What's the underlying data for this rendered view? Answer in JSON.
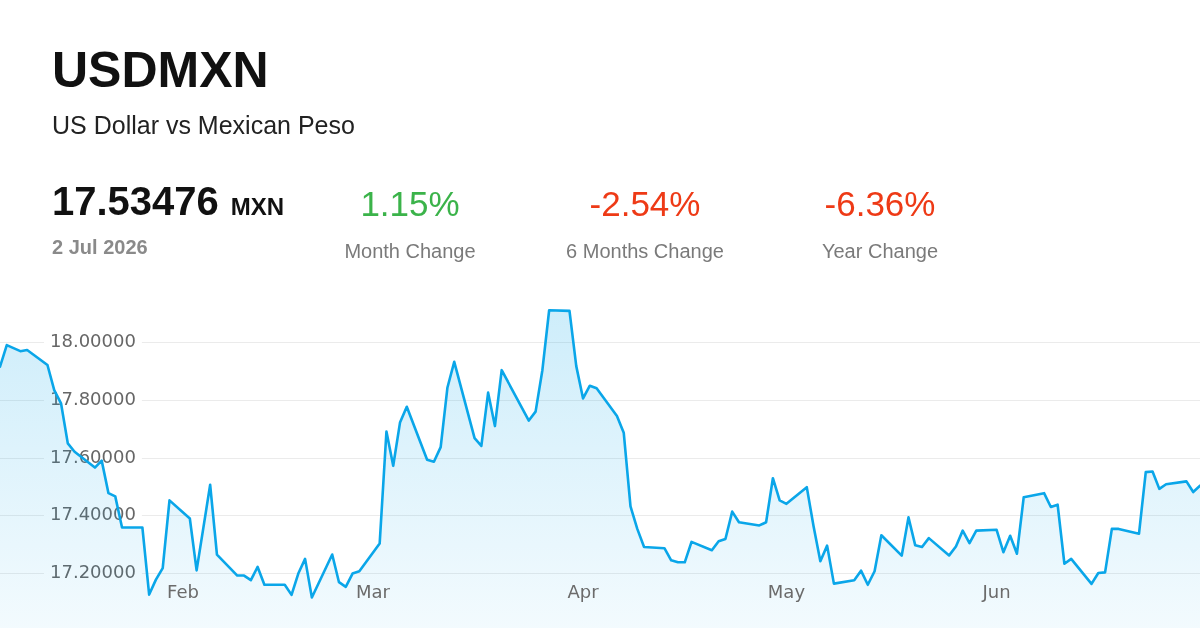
{
  "chart_data": {
    "type": "area",
    "title": "USDMXN",
    "subtitle": "US Dollar vs Mexican Peso",
    "annotations": [
      "17.53476",
      "MXN",
      "2 Jul 2026",
      "1.15%",
      "Month Change",
      "-2.54%",
      "6 Months Change",
      "-6.36%",
      "Year Change"
    ],
    "x": [
      "2026-01-05",
      "2026-01-06",
      "2026-01-08",
      "2026-01-09",
      "2026-01-12",
      "2026-01-13",
      "2026-01-14",
      "2026-01-15",
      "2026-01-16",
      "2026-01-19",
      "2026-01-20",
      "2026-01-21",
      "2026-01-22",
      "2026-01-23",
      "2026-01-26",
      "2026-01-27",
      "2026-01-28",
      "2026-01-29",
      "2026-01-30",
      "2026-02-02",
      "2026-02-03",
      "2026-02-05",
      "2026-02-06",
      "2026-02-09",
      "2026-02-10",
      "2026-02-11",
      "2026-02-12",
      "2026-02-13",
      "2026-02-16",
      "2026-02-17",
      "2026-02-18",
      "2026-02-19",
      "2026-02-20",
      "2026-02-23",
      "2026-02-24",
      "2026-02-25",
      "2026-02-26",
      "2026-02-27",
      "2026-03-02",
      "2026-03-03",
      "2026-03-04",
      "2026-03-05",
      "2026-03-06",
      "2026-03-09",
      "2026-03-10",
      "2026-03-11",
      "2026-03-12",
      "2026-03-13",
      "2026-03-16",
      "2026-03-17",
      "2026-03-18",
      "2026-03-19",
      "2026-03-20",
      "2026-03-24",
      "2026-03-25",
      "2026-03-26",
      "2026-03-27",
      "2026-03-30",
      "2026-03-31",
      "2026-04-01",
      "2026-04-02",
      "2026-04-03",
      "2026-04-06",
      "2026-04-07",
      "2026-04-08",
      "2026-04-09",
      "2026-04-10",
      "2026-04-13",
      "2026-04-14",
      "2026-04-15",
      "2026-04-16",
      "2026-04-17",
      "2026-04-20",
      "2026-04-21",
      "2026-04-22",
      "2026-04-23",
      "2026-04-24",
      "2026-04-27",
      "2026-04-28",
      "2026-04-29",
      "2026-04-30",
      "2026-05-01",
      "2026-05-04",
      "2026-05-05",
      "2026-05-06",
      "2026-05-07",
      "2026-05-08",
      "2026-05-11",
      "2026-05-12",
      "2026-05-13",
      "2026-05-14",
      "2026-05-15",
      "2026-05-18",
      "2026-05-19",
      "2026-05-20",
      "2026-05-21",
      "2026-05-22",
      "2026-05-25",
      "2026-05-26",
      "2026-05-27",
      "2026-05-28",
      "2026-05-29",
      "2026-06-01",
      "2026-06-02",
      "2026-06-03",
      "2026-06-04",
      "2026-06-05",
      "2026-06-08",
      "2026-06-09",
      "2026-06-10",
      "2026-06-11",
      "2026-06-12",
      "2026-06-15",
      "2026-06-16",
      "2026-06-17",
      "2026-06-18",
      "2026-06-19",
      "2026-06-22",
      "2026-06-23",
      "2026-06-24",
      "2026-06-25",
      "2026-06-26",
      "2026-06-29",
      "2026-06-30",
      "2026-07-01"
    ],
    "series": [
      {
        "color": "#0aa6e9",
        "values": [
          17.917,
          17.992,
          17.971,
          17.975,
          17.923,
          17.836,
          17.79,
          17.651,
          17.622,
          17.567,
          17.591,
          17.478,
          17.467,
          17.359,
          17.359,
          17.126,
          17.178,
          17.218,
          17.453,
          17.39,
          17.21,
          17.507,
          17.265,
          17.192,
          17.192,
          17.176,
          17.222,
          17.16,
          17.16,
          17.125,
          17.199,
          17.25,
          17.116,
          17.265,
          17.169,
          17.153,
          17.199,
          17.207,
          17.303,
          17.692,
          17.573,
          17.723,
          17.778,
          17.594,
          17.587,
          17.638,
          17.845,
          17.934,
          17.669,
          17.642,
          17.827,
          17.711,
          17.905,
          17.73,
          17.761,
          17.905,
          18.113,
          18.111,
          17.919,
          17.807,
          17.851,
          17.842,
          17.746,
          17.688,
          17.432,
          17.354,
          17.291,
          17.287,
          17.245,
          17.238,
          17.238,
          17.309,
          17.28,
          17.311,
          17.319,
          17.414,
          17.377,
          17.366,
          17.377,
          17.53,
          17.453,
          17.441,
          17.499,
          17.363,
          17.242,
          17.296,
          17.164,
          17.176,
          17.209,
          17.16,
          17.207,
          17.332,
          17.261,
          17.394,
          17.297,
          17.291,
          17.322,
          17.262,
          17.293,
          17.348,
          17.305,
          17.348,
          17.351,
          17.273,
          17.33,
          17.268,
          17.464,
          17.478,
          17.43,
          17.438,
          17.233,
          17.25,
          17.163,
          17.201,
          17.203,
          17.354,
          17.354,
          17.337,
          17.551,
          17.553,
          17.493,
          17.509,
          17.519,
          17.482,
          17.504
        ]
      }
    ],
    "xlim": [
      "2026-01-05",
      "2026-07-01"
    ],
    "xticks": [
      {
        "value": "2026-02-01",
        "label": "Feb"
      },
      {
        "value": "2026-03-01",
        "label": "Mar"
      },
      {
        "value": "2026-04-01",
        "label": "Apr"
      },
      {
        "value": "2026-05-01",
        "label": "May"
      },
      {
        "value": "2026-06-01",
        "label": "Jun"
      }
    ],
    "ylim": [
      17.01,
      19.19
    ],
    "yticks": [
      {
        "value": 17.2,
        "label": "17.20000"
      },
      {
        "value": 17.4,
        "label": "17.40000"
      },
      {
        "value": 17.6,
        "label": "17.60000"
      },
      {
        "value": 17.8,
        "label": "17.80000"
      },
      {
        "value": 18,
        "label": "18.00000"
      }
    ],
    "grid": "y"
  }
}
